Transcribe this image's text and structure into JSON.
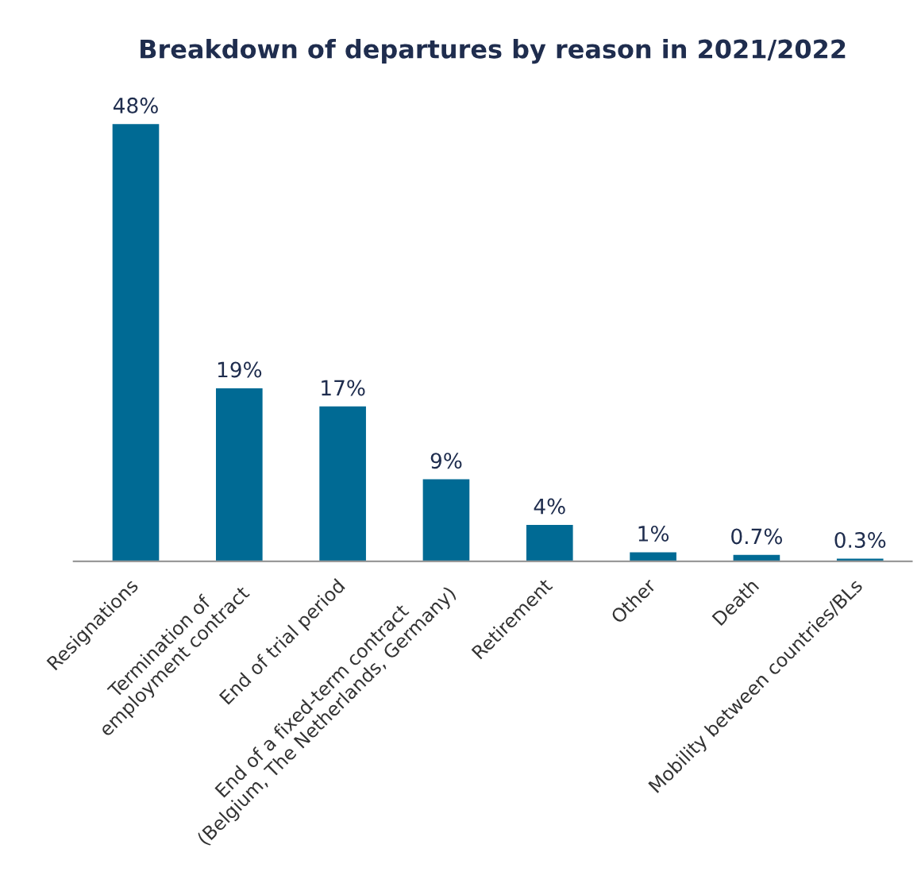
{
  "chart_data": {
    "type": "bar",
    "title": "Breakdown of departures by reason in 2021/2022",
    "categories": [
      "Resignations",
      "Termination of\nemployment contract",
      "End of trial period",
      "End of a fixed-term contract\n(Belgium, The Netherlands, Germany)",
      "Retirement",
      "Other",
      "Death",
      "Mobility between countries/BLs"
    ],
    "values": [
      48,
      19,
      17,
      9,
      4,
      1,
      0.7,
      0.3
    ],
    "value_labels": [
      "48%",
      "19%",
      "17%",
      "9%",
      "4%",
      "1%",
      "0.7%",
      "0.3%"
    ],
    "color": "#006a94"
  }
}
